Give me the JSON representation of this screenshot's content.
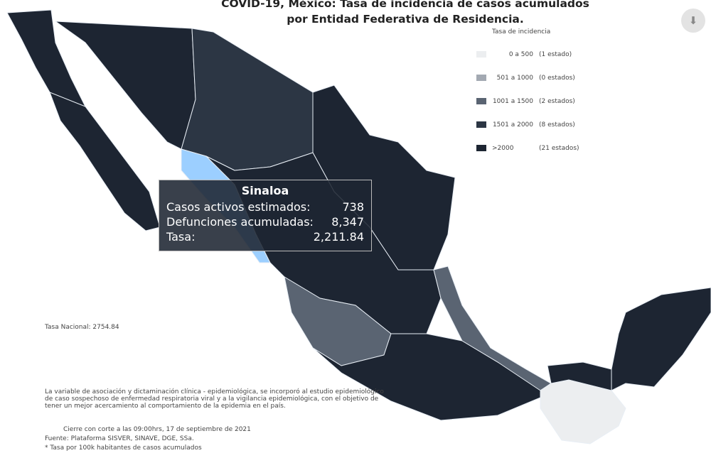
{
  "title": "COVID-19, México: Tasa de incidencia de casos acumulados por Entidad Federativa de Residencia.",
  "download_icon": "download-icon",
  "legend": {
    "title": "Tasa de incidencia",
    "items": [
      {
        "range": "0 a 500",
        "count": "(1 estado)",
        "color": "#eceef0"
      },
      {
        "range": "501 a 1000",
        "count": "(0 estados)",
        "color": "#a3a9b2"
      },
      {
        "range": "1001 a 1500",
        "count": "(2 estados)",
        "color": "#5a6472"
      },
      {
        "range": "1501 a 2000",
        "count": "(8 estados)",
        "color": "#2c3644"
      },
      {
        "range": ">2000",
        "count": "(21 estados)",
        "color": "#1d2532"
      }
    ]
  },
  "tooltip": {
    "state": "Sinaloa",
    "rows": [
      {
        "label": "Casos activos estimados:",
        "value": "738"
      },
      {
        "label": "Defunciones acumuladas:",
        "value": "8,347"
      },
      {
        "label": "Tasa:",
        "value": "2,211.84"
      }
    ]
  },
  "highlight_color": "#9ccfff",
  "national_rate": "Tasa Nacional: 2754.84",
  "note": "La variable de asociación y dictaminación clínica - epidemiológica, se incorporó al estudio epidemiológico de caso sospechoso de enfermedad respiratoria viral y a la vigilancia epidemiológica, con el objetivo de tener un mejor acercamiento al comportamiento de la epidemia en el país.",
  "footer": {
    "cutoff": "Cierre con corte a las 09:00hrs, 17 de septiembre de 2021",
    "source": "Fuente: Plataforma SISVER, SINAVE, DGE, SSa.",
    "rate_note": "* Tasa por 100k habitantes de casos acumulados"
  }
}
